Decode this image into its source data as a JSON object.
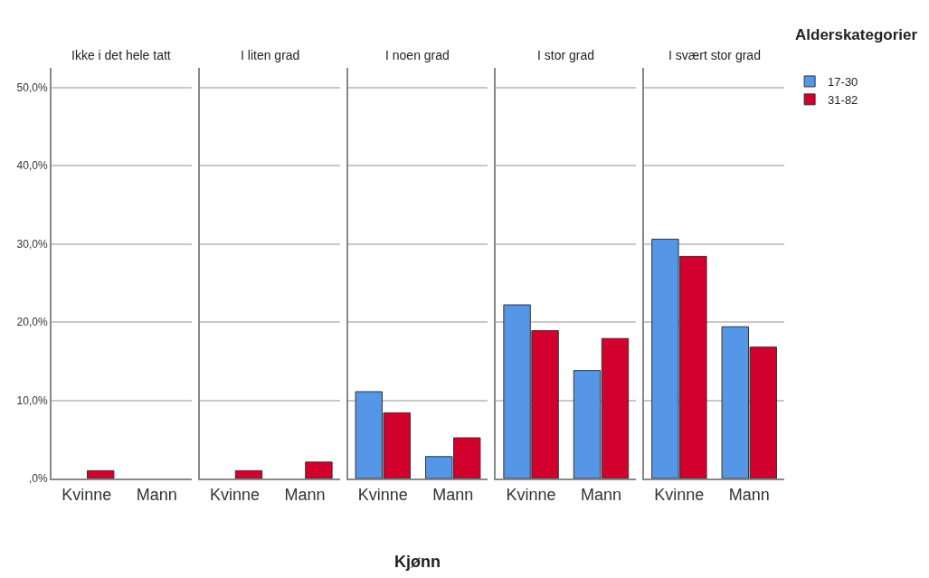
{
  "chart_data": [
    {
      "type": "bar",
      "title": "Ikke i det hele tatt",
      "categories": [
        "Kvinne",
        "Mann"
      ],
      "series": [
        {
          "color": "#5596e6",
          "values": [
            null,
            null
          ]
        },
        {
          "color": "#d2002d",
          "values": [
            1.0,
            null
          ]
        }
      ],
      "ylim": [
        0,
        52.5
      ],
      "yticks": [
        {
          "value": 0,
          "label": ",0%"
        },
        {
          "value": 10,
          "label": "10,0%"
        },
        {
          "value": 20,
          "label": "20,0%"
        },
        {
          "value": 30,
          "label": "30,0%"
        },
        {
          "value": 40,
          "label": "40,0%"
        },
        {
          "value": 50,
          "label": "50,0%"
        }
      ],
      "grid": "y",
      "tick_labels": "xy"
    },
    {
      "type": "bar",
      "title": "I liten grad",
      "categories": [
        "Kvinne",
        "Mann"
      ],
      "series": [
        {
          "color": "#5596e6",
          "values": [
            null,
            null
          ]
        },
        {
          "color": "#d2002d",
          "values": [
            1.0,
            2.1
          ]
        }
      ],
      "ylim": [
        0,
        52.5
      ],
      "yticks": [
        {
          "value": 0,
          "label": null
        },
        {
          "value": 10,
          "label": null
        },
        {
          "value": 20,
          "label": null
        },
        {
          "value": 30,
          "label": null
        },
        {
          "value": 40,
          "label": null
        },
        {
          "value": 50,
          "label": null
        }
      ],
      "grid": "y",
      "tick_labels": "x"
    },
    {
      "type": "bar",
      "title": "I noen grad",
      "xlabel": "Kjønn",
      "categories": [
        "Kvinne",
        "Mann"
      ],
      "series": [
        {
          "color": "#5596e6",
          "values": [
            11.1,
            2.8
          ]
        },
        {
          "color": "#d2002d",
          "values": [
            8.4,
            5.2
          ]
        }
      ],
      "ylim": [
        0,
        52.5
      ],
      "yticks": [
        {
          "value": 0,
          "label": null
        },
        {
          "value": 10,
          "label": null
        },
        {
          "value": 20,
          "label": null
        },
        {
          "value": 30,
          "label": null
        },
        {
          "value": 40,
          "label": null
        },
        {
          "value": 50,
          "label": null
        }
      ],
      "grid": "y",
      "tick_labels": "x"
    },
    {
      "type": "bar",
      "title": "I stor grad",
      "categories": [
        "Kvinne",
        "Mann"
      ],
      "series": [
        {
          "color": "#5596e6",
          "values": [
            22.2,
            13.8
          ]
        },
        {
          "color": "#d2002d",
          "values": [
            18.9,
            17.9
          ]
        }
      ],
      "ylim": [
        0,
        52.5
      ],
      "yticks": [
        {
          "value": 0,
          "label": null
        },
        {
          "value": 10,
          "label": null
        },
        {
          "value": 20,
          "label": null
        },
        {
          "value": 30,
          "label": null
        },
        {
          "value": 40,
          "label": null
        },
        {
          "value": 50,
          "label": null
        }
      ],
      "grid": "y",
      "tick_labels": "x"
    },
    {
      "type": "bar",
      "title": "I svært stor grad",
      "legend_title": "Alderskategorier",
      "legend": "top right",
      "categories": [
        "Kvinne",
        "Mann"
      ],
      "series": [
        {
          "name": "17-30",
          "color": "#5596e6",
          "values": [
            30.6,
            19.4
          ]
        },
        {
          "name": "31-82",
          "color": "#d2002d",
          "values": [
            28.4,
            16.8
          ]
        }
      ],
      "ylim": [
        0,
        52.5
      ],
      "yticks": [
        {
          "value": 0,
          "label": null
        },
        {
          "value": 10,
          "label": null
        },
        {
          "value": 20,
          "label": null
        },
        {
          "value": 30,
          "label": null
        },
        {
          "value": 40,
          "label": null
        },
        {
          "value": 50,
          "label": null
        }
      ],
      "grid": "y",
      "tick_labels": "x"
    }
  ]
}
